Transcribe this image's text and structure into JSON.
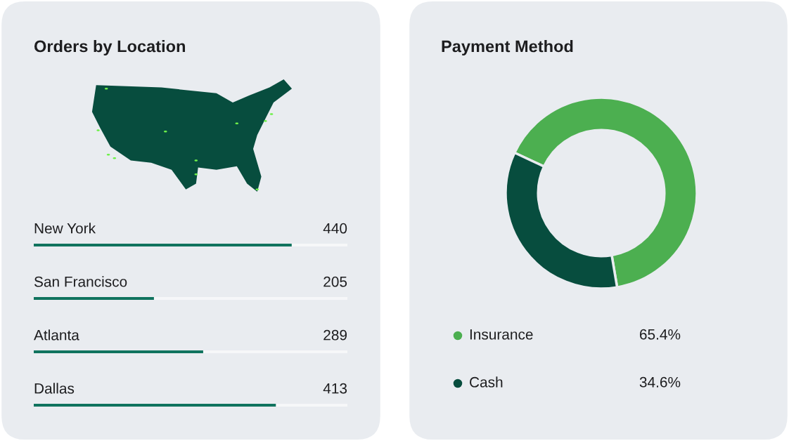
{
  "chart_data": [
    {
      "type": "bar",
      "orientation": "horizontal",
      "title": "Orders by Location",
      "categories": [
        "New York",
        "San Francisco",
        "Atlanta",
        "Dallas"
      ],
      "values": [
        440,
        205,
        289,
        413
      ],
      "color": "#10735e",
      "xlim": [
        0,
        535
      ],
      "data_labels": true
    },
    {
      "type": "donut",
      "title": "Payment Method",
      "categories": [
        "Insurance",
        "Cash"
      ],
      "values": [
        65.4,
        34.6
      ],
      "colors": [
        "#4caf50",
        "#074d3e"
      ],
      "value_labels": [
        "65.4%",
        "34.6%"
      ],
      "legend": "bottom"
    }
  ]
}
